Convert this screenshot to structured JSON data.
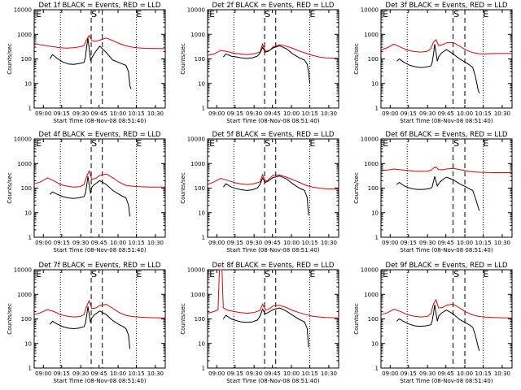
{
  "colors": {
    "events": "#000000",
    "lld": "#e00000",
    "background": "#ffffff",
    "axes": "#000000"
  },
  "common": {
    "xtick_labels": [
      "09:00",
      "09:15",
      "09:30",
      "09:45",
      "10:00",
      "10:15",
      "10:30"
    ],
    "ytick_labels": [
      "1",
      "10",
      "100",
      "1000",
      "10000"
    ],
    "ylabel": "Counts/sec",
    "xlabel": "Start Time (08-Nov-08 08:51:40)",
    "markers": {
      "start": "E",
      "mid": "S",
      "end": "E"
    }
  },
  "chart_data": [
    {
      "type": "line",
      "title": "Det 1f BLACK = Events, RED = LLD",
      "xlabel": "Start Time (08-Nov-08 08:51:40)",
      "ylabel": "Counts/sec",
      "xlim": [
        0,
        100
      ],
      "ylim": [
        1,
        10000
      ],
      "yscale": "log",
      "grid": false,
      "series": [
        {
          "name": "LLD",
          "x": [
            0,
            5,
            10,
            15,
            20,
            25,
            30,
            35,
            38,
            40,
            42,
            44,
            47,
            50,
            55,
            60,
            65,
            70,
            75,
            80,
            85,
            90,
            95,
            100
          ],
          "y": [
            430,
            370,
            340,
            310,
            285,
            275,
            285,
            310,
            350,
            600,
            900,
            550,
            520,
            580,
            700,
            560,
            420,
            340,
            300,
            280,
            270,
            265,
            262,
            260
          ]
        },
        {
          "name": "Events",
          "x": [
            12,
            14,
            18,
            22,
            26,
            30,
            34,
            38,
            39,
            40,
            41,
            43,
            44,
            46,
            50,
            55,
            60,
            65,
            68,
            70,
            72,
            73,
            74
          ],
          "y": [
            100,
            150,
            100,
            75,
            62,
            60,
            64,
            72,
            110,
            300,
            700,
            90,
            110,
            170,
            330,
            180,
            90,
            70,
            60,
            55,
            30,
            8,
            6
          ]
        }
      ]
    },
    {
      "type": "line",
      "title": "Det 2f BLACK = Events, RED = LLD",
      "xlabel": "Start Time (08-Nov-08 08:51:40)",
      "ylabel": "Counts/sec",
      "xlim": [
        0,
        100
      ],
      "ylim": [
        1,
        10000
      ],
      "yscale": "log",
      "grid": false,
      "series": [
        {
          "name": "LLD",
          "x": [
            0,
            5,
            10,
            15,
            20,
            25,
            30,
            35,
            40,
            42,
            44,
            46,
            48,
            50,
            55,
            60,
            65,
            70,
            75,
            80,
            85,
            90,
            95,
            100
          ],
          "y": [
            140,
            160,
            220,
            200,
            170,
            160,
            150,
            160,
            190,
            400,
            210,
            210,
            240,
            310,
            380,
            330,
            270,
            210,
            170,
            140,
            120,
            110,
            108,
            105
          ]
        },
        {
          "name": "Events",
          "x": [
            12,
            14,
            18,
            22,
            26,
            30,
            34,
            38,
            40,
            42,
            44,
            46,
            50,
            55,
            60,
            65,
            70,
            74,
            76,
            77,
            78
          ],
          "y": [
            120,
            160,
            130,
            120,
            110,
            105,
            110,
            130,
            170,
            300,
            190,
            200,
            280,
            340,
            260,
            160,
            110,
            90,
            60,
            30,
            10
          ]
        }
      ]
    },
    {
      "type": "line",
      "title": "Det 3f BLACK = Events, RED = LLD",
      "xlabel": "Start Time (08-Nov-08 08:51:40)",
      "ylabel": "Counts/sec",
      "xlim": [
        0,
        100
      ],
      "ylim": [
        1,
        10000
      ],
      "yscale": "log",
      "grid": false,
      "series": [
        {
          "name": "LLD",
          "x": [
            0,
            5,
            10,
            15,
            20,
            25,
            30,
            35,
            38,
            40,
            42,
            44,
            47,
            50,
            55,
            60,
            65,
            70,
            75,
            80,
            85,
            90,
            95,
            100
          ],
          "y": [
            230,
            290,
            400,
            300,
            230,
            200,
            190,
            200,
            260,
            480,
            600,
            350,
            380,
            450,
            470,
            330,
            230,
            180,
            160,
            160,
            165,
            165,
            165,
            165
          ]
        },
        {
          "name": "Events",
          "x": [
            12,
            14,
            18,
            22,
            26,
            30,
            34,
            38,
            39,
            40,
            41,
            43,
            44,
            46,
            50,
            55,
            60,
            65,
            68,
            70,
            72,
            74,
            75
          ],
          "y": [
            80,
            100,
            70,
            55,
            48,
            45,
            46,
            52,
            70,
            150,
            400,
            80,
            120,
            170,
            240,
            160,
            100,
            70,
            55,
            45,
            20,
            6,
            4
          ]
        }
      ]
    },
    {
      "type": "line",
      "title": "Det 4f BLACK = Events, RED = LLD",
      "xlabel": "Start Time (08-Nov-08 08:51:40)",
      "ylabel": "Counts/sec",
      "xlim": [
        0,
        100
      ],
      "ylim": [
        1,
        10000
      ],
      "yscale": "log",
      "grid": false,
      "series": [
        {
          "name": "LLD",
          "x": [
            0,
            5,
            10,
            15,
            20,
            25,
            30,
            35,
            38,
            40,
            42,
            44,
            47,
            50,
            55,
            60,
            65,
            70,
            75,
            80,
            85,
            90,
            95,
            100
          ],
          "y": [
            150,
            180,
            260,
            200,
            140,
            120,
            110,
            115,
            140,
            300,
            500,
            230,
            250,
            330,
            380,
            260,
            170,
            130,
            120,
            115,
            112,
            110,
            110,
            110
          ]
        },
        {
          "name": "Events",
          "x": [
            12,
            14,
            18,
            22,
            26,
            30,
            34,
            38,
            39,
            40,
            41,
            43,
            44,
            46,
            50,
            55,
            60,
            65,
            68,
            70,
            72,
            73
          ],
          "y": [
            55,
            70,
            55,
            45,
            40,
            38,
            40,
            45,
            60,
            120,
            300,
            60,
            110,
            140,
            200,
            140,
            80,
            55,
            45,
            40,
            20,
            7
          ]
        }
      ]
    },
    {
      "type": "line",
      "title": "Det 5f BLACK = Events, RED = LLD",
      "xlabel": "Start Time (08-Nov-08 08:51:40)",
      "ylabel": "Counts/sec",
      "xlim": [
        0,
        100
      ],
      "ylim": [
        1,
        10000
      ],
      "yscale": "log",
      "grid": false,
      "series": [
        {
          "name": "LLD",
          "x": [
            0,
            5,
            10,
            15,
            20,
            25,
            30,
            35,
            40,
            42,
            44,
            46,
            48,
            50,
            55,
            60,
            65,
            70,
            75,
            80,
            85,
            90,
            95,
            100
          ],
          "y": [
            140,
            180,
            250,
            210,
            170,
            150,
            140,
            150,
            180,
            350,
            190,
            210,
            260,
            330,
            340,
            280,
            220,
            170,
            130,
            110,
            100,
            95,
            92,
            90
          ]
        },
        {
          "name": "Events",
          "x": [
            12,
            14,
            18,
            22,
            26,
            30,
            34,
            38,
            40,
            42,
            44,
            46,
            50,
            55,
            60,
            65,
            70,
            74,
            76,
            77
          ],
          "y": [
            110,
            150,
            110,
            95,
            85,
            80,
            85,
            100,
            140,
            260,
            170,
            190,
            270,
            310,
            240,
            150,
            100,
            80,
            40,
            8
          ]
        }
      ]
    },
    {
      "type": "line",
      "title": "Det 6f BLACK = Events, RED = LLD",
      "xlabel": "Start Time (08-Nov-08 08:51:40)",
      "ylabel": "Counts/sec",
      "xlim": [
        0,
        100
      ],
      "ylim": [
        1,
        10000
      ],
      "yscale": "log",
      "grid": false,
      "series": [
        {
          "name": "LLD",
          "x": [
            0,
            5,
            10,
            15,
            20,
            25,
            30,
            35,
            38,
            40,
            42,
            44,
            47,
            50,
            55,
            60,
            65,
            70,
            75,
            80,
            85,
            90,
            95,
            100
          ],
          "y": [
            520,
            540,
            600,
            560,
            520,
            490,
            480,
            490,
            520,
            650,
            720,
            560,
            560,
            600,
            630,
            570,
            500,
            460,
            440,
            430,
            425,
            425,
            425,
            425
          ]
        },
        {
          "name": "Events",
          "x": [
            12,
            14,
            18,
            22,
            26,
            30,
            34,
            38,
            39,
            40,
            41,
            43,
            44,
            46,
            50,
            55,
            60,
            65,
            68,
            70,
            72,
            74,
            75
          ],
          "y": [
            140,
            170,
            120,
            100,
            90,
            88,
            90,
            98,
            110,
            180,
            300,
            120,
            150,
            200,
            280,
            220,
            150,
            110,
            90,
            80,
            40,
            18,
            12
          ]
        }
      ]
    },
    {
      "type": "line",
      "title": "Det 7f BLACK = Events, RED = LLD",
      "xlabel": "Start Time (08-Nov-08 08:51:40)",
      "ylabel": "Counts/sec",
      "xlim": [
        0,
        100
      ],
      "ylim": [
        1,
        10000
      ],
      "yscale": "log",
      "grid": false,
      "series": [
        {
          "name": "LLD",
          "x": [
            0,
            5,
            10,
            15,
            20,
            25,
            30,
            35,
            38,
            40,
            42,
            44,
            47,
            50,
            55,
            60,
            65,
            70,
            75,
            80,
            85,
            90,
            95,
            100
          ],
          "y": [
            150,
            180,
            240,
            200,
            150,
            130,
            120,
            125,
            150,
            330,
            550,
            260,
            280,
            350,
            390,
            270,
            180,
            140,
            125,
            118,
            115,
            112,
            110,
            110
          ]
        },
        {
          "name": "Events",
          "x": [
            12,
            14,
            18,
            22,
            26,
            30,
            34,
            38,
            39,
            40,
            41,
            43,
            44,
            46,
            50,
            55,
            60,
            65,
            68,
            70,
            72,
            73
          ],
          "y": [
            60,
            80,
            60,
            48,
            42,
            40,
            42,
            48,
            65,
            130,
            320,
            70,
            110,
            150,
            210,
            150,
            85,
            58,
            48,
            40,
            22,
            6
          ]
        }
      ]
    },
    {
      "type": "line",
      "title": "Det 8f BLACK = Events, RED = LLD",
      "xlabel": "Start Time (08-Nov-08 08:51:40)",
      "ylabel": "Counts/sec",
      "xlim": [
        0,
        100
      ],
      "ylim": [
        1,
        10000
      ],
      "yscale": "log",
      "grid": false,
      "series": [
        {
          "name": "LLD",
          "x": [
            0,
            5,
            8,
            9,
            10,
            11,
            12,
            15,
            20,
            25,
            30,
            35,
            40,
            42,
            44,
            46,
            48,
            50,
            55,
            60,
            65,
            70,
            75,
            80,
            85,
            90,
            95,
            100
          ],
          "y": [
            170,
            200,
            240,
            10000,
            10000,
            10000,
            280,
            230,
            200,
            180,
            170,
            180,
            220,
            400,
            240,
            240,
            280,
            340,
            360,
            290,
            220,
            180,
            150,
            130,
            120,
            115,
            112,
            110
          ]
        },
        {
          "name": "Events",
          "x": [
            12,
            14,
            18,
            22,
            26,
            30,
            34,
            38,
            40,
            42,
            44,
            46,
            50,
            55,
            60,
            65,
            70,
            74,
            76,
            77
          ],
          "y": [
            100,
            140,
            100,
            85,
            75,
            72,
            75,
            90,
            130,
            250,
            160,
            180,
            240,
            280,
            210,
            140,
            95,
            75,
            40,
            7
          ]
        }
      ]
    },
    {
      "type": "line",
      "title": "Det 9f BLACK = Events, RED = LLD",
      "xlabel": "Start Time (08-Nov-08 08:51:40)",
      "ylabel": "Counts/sec",
      "xlim": [
        0,
        100
      ],
      "ylim": [
        1,
        10000
      ],
      "yscale": "log",
      "grid": false,
      "series": [
        {
          "name": "LLD",
          "x": [
            0,
            5,
            10,
            15,
            20,
            25,
            30,
            35,
            38,
            40,
            42,
            44,
            47,
            50,
            55,
            60,
            65,
            70,
            75,
            80,
            85,
            90,
            95,
            100
          ],
          "y": [
            150,
            180,
            250,
            200,
            150,
            130,
            120,
            125,
            160,
            400,
            600,
            280,
            290,
            360,
            400,
            280,
            190,
            145,
            125,
            118,
            115,
            112,
            110,
            110
          ]
        },
        {
          "name": "Events",
          "x": [
            12,
            14,
            18,
            22,
            26,
            30,
            34,
            38,
            39,
            40,
            41,
            43,
            44,
            46,
            50,
            55,
            60,
            65,
            68,
            70,
            72,
            74,
            75
          ],
          "y": [
            80,
            100,
            75,
            60,
            52,
            50,
            52,
            58,
            80,
            160,
            380,
            80,
            130,
            170,
            230,
            160,
            95,
            68,
            55,
            45,
            22,
            8,
            5
          ]
        }
      ]
    }
  ]
}
